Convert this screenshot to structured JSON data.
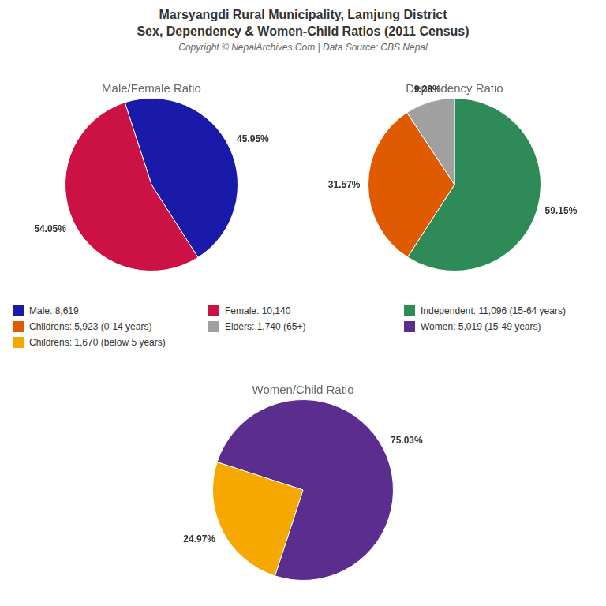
{
  "title": [
    "Marsyangdi Rural Municipality, Lamjung District",
    "Sex, Dependency & Women-Child Ratios (2011 Census)"
  ],
  "annotations": [
    "Copyright © NepalArchives.Com | Data Source: CBS Nepal"
  ],
  "legend": "center",
  "chart_data": [
    {
      "type": "pie",
      "title": "Male/Female Ratio",
      "categories": [
        "Male: 8,619",
        "Female: 10,140"
      ],
      "values": [
        45.95,
        54.05
      ],
      "value_labels": [
        "45.95%",
        "54.05%"
      ],
      "colors": [
        "#1a1aaa",
        "#cc1144"
      ],
      "data_labels": true
    },
    {
      "type": "pie",
      "title": "Dependency Ratio",
      "categories": [
        "Independent: 11,096 (15-64 years)",
        "Childrens: 5,923 (0-14 years)",
        "Elders: 1,740 (65+)"
      ],
      "values": [
        59.15,
        31.57,
        9.28
      ],
      "value_labels": [
        "59.15%",
        "31.57%",
        "9.28%"
      ],
      "colors": [
        "#2e8b57",
        "#e05a00",
        "#a0a0a0"
      ],
      "data_labels": true
    },
    {
      "type": "pie",
      "title": "Women/Child Ratio",
      "categories": [
        "Women: 5,019 (15-49 years)",
        "Childrens: 1,670 (below 5 years)"
      ],
      "values": [
        75.03,
        24.97
      ],
      "value_labels": [
        "75.03%",
        "24.97%"
      ],
      "colors": [
        "#5b2d8e",
        "#f5a800"
      ],
      "data_labels": true
    }
  ]
}
